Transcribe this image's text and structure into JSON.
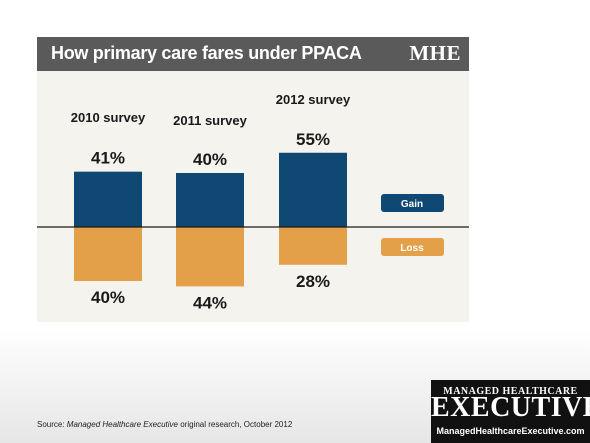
{
  "header": {
    "title": "How primary care fares under PPACA",
    "brand": "MHE"
  },
  "source": {
    "prefix": "Source: ",
    "publication": "Managed Healthcare Executive",
    "suffix": " original research, October 2012"
  },
  "logo": {
    "top": "MANAGED HEALTHCARE",
    "main": "EXECUTIVE",
    "url": "ManagedHealthcareExecutive.com"
  },
  "colors": {
    "gain": "#0f4872",
    "loss": "#e3a048",
    "title_bar": "#5a5a5a",
    "panel": "#f5f3ee"
  },
  "chart_data": {
    "type": "bar",
    "categories": [
      "2010 survey",
      "2011 survey",
      "2012 survey"
    ],
    "series": [
      {
        "name": "Gain",
        "values": [
          41,
          40,
          55
        ],
        "labels": [
          "41%",
          "40%",
          "55%"
        ]
      },
      {
        "name": "Loss",
        "values": [
          40,
          44,
          28
        ],
        "labels": [
          "40%",
          "44%",
          "28%"
        ]
      }
    ],
    "legend_position": "right"
  }
}
